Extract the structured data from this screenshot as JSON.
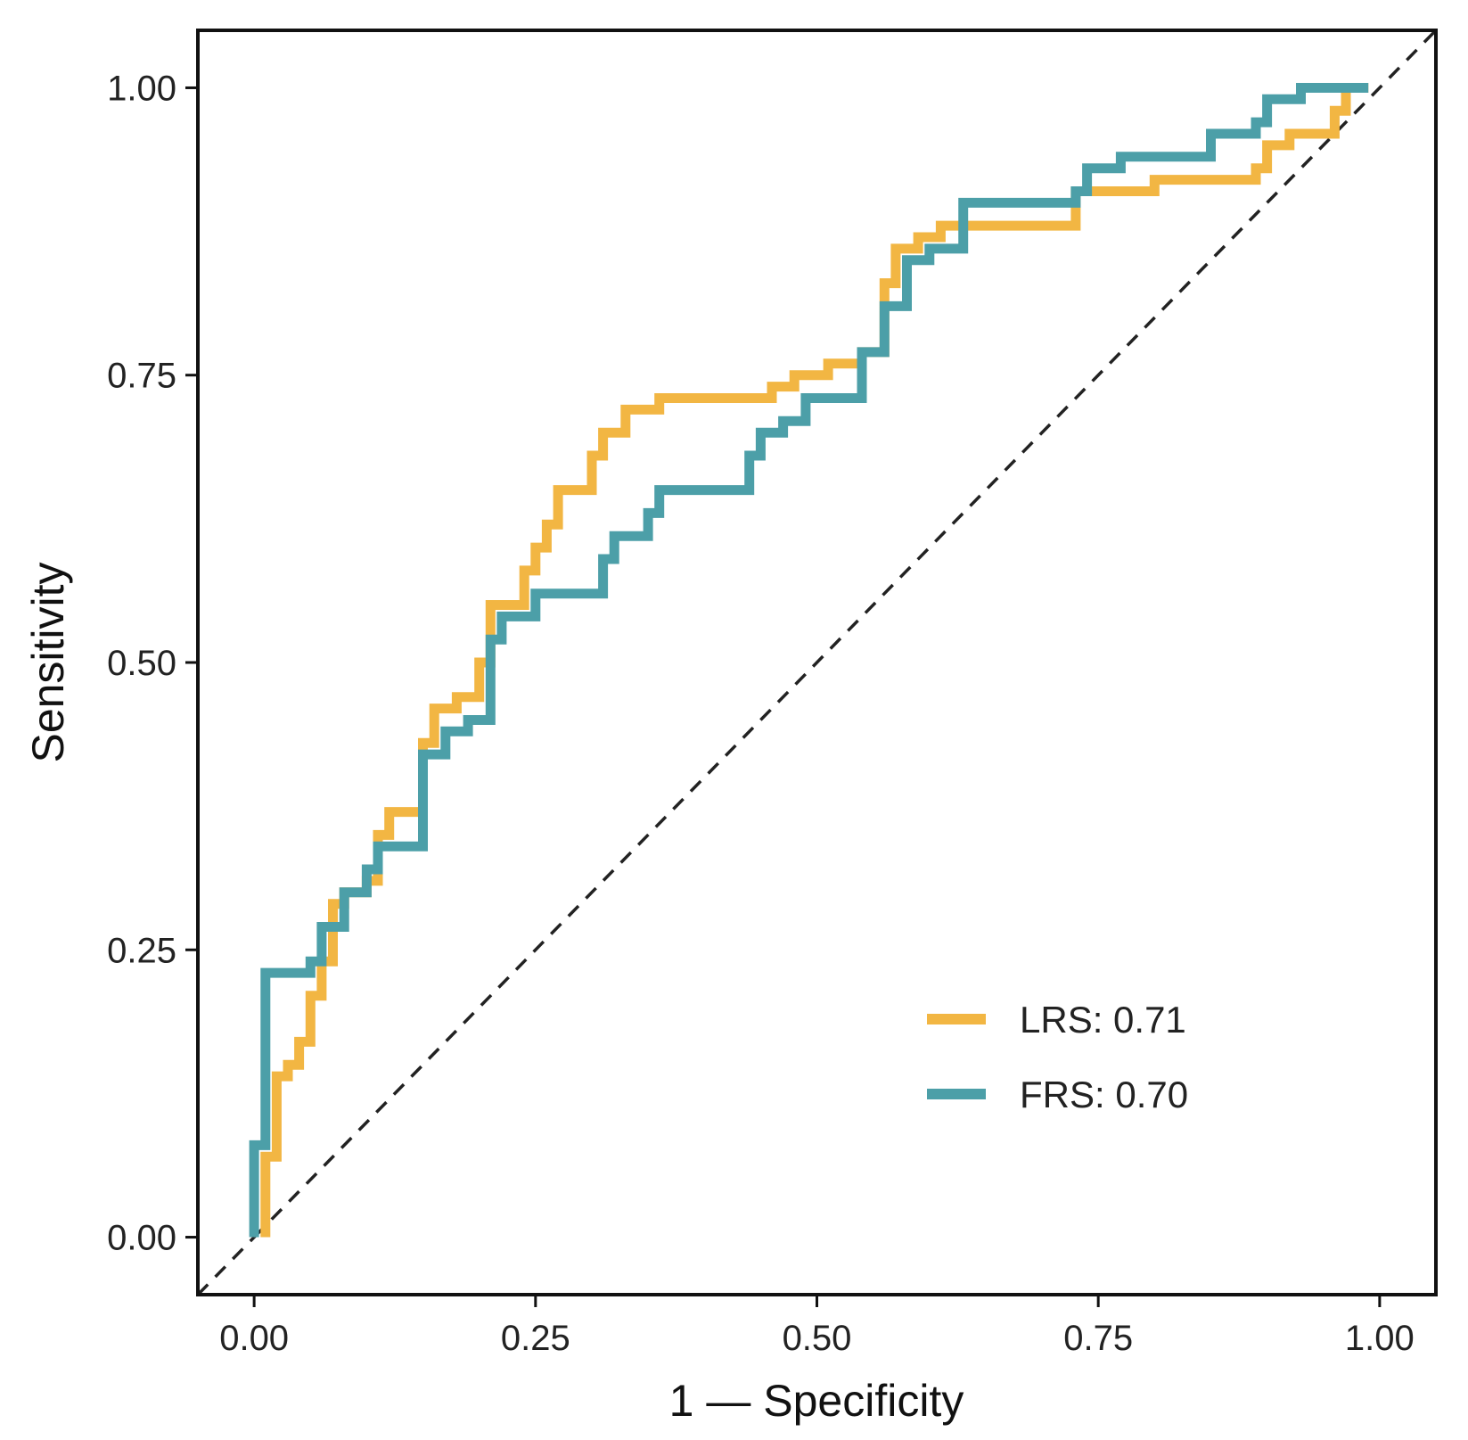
{
  "chart_data": {
    "type": "line",
    "title": "",
    "xlabel": "1 — Specificity",
    "ylabel": "Sensitivity",
    "xlim": [
      -0.05,
      1.05
    ],
    "ylim": [
      -0.05,
      1.05
    ],
    "x_ticks": [
      0.0,
      0.25,
      0.5,
      0.75,
      1.0
    ],
    "x_tick_labels": [
      "0.00",
      "0.25",
      "0.50",
      "0.75",
      "1.00"
    ],
    "y_ticks": [
      0.0,
      0.25,
      0.5,
      0.75,
      1.0
    ],
    "y_tick_labels": [
      "0.00",
      "0.25",
      "0.50",
      "0.75",
      "1.00"
    ],
    "grid": false,
    "legend_position": "bottom-right",
    "reference_line": {
      "x": [
        0,
        1.05
      ],
      "y": [
        0,
        1.05
      ],
      "style": "dashed",
      "color": "#222222"
    },
    "series": [
      {
        "name": "LRS",
        "legend_label": "LRS: 0.71",
        "auc": 0.71,
        "color": "#F2B643",
        "x": [
          0.01,
          0.01,
          0.02,
          0.02,
          0.03,
          0.03,
          0.04,
          0.04,
          0.05,
          0.05,
          0.06,
          0.06,
          0.07,
          0.07,
          0.08,
          0.08,
          0.1,
          0.1,
          0.11,
          0.11,
          0.12,
          0.12,
          0.15,
          0.15,
          0.16,
          0.16,
          0.18,
          0.18,
          0.2,
          0.2,
          0.21,
          0.21,
          0.24,
          0.24,
          0.25,
          0.25,
          0.26,
          0.26,
          0.27,
          0.27,
          0.3,
          0.3,
          0.31,
          0.31,
          0.33,
          0.33,
          0.36,
          0.36,
          0.46,
          0.46,
          0.48,
          0.48,
          0.51,
          0.51,
          0.54,
          0.54,
          0.56,
          0.56,
          0.57,
          0.57,
          0.59,
          0.59,
          0.61,
          0.61,
          0.73,
          0.73,
          0.8,
          0.8,
          0.89,
          0.89,
          0.9,
          0.9,
          0.92,
          0.92,
          0.96,
          0.96,
          0.97,
          0.97,
          0.99
        ],
        "y": [
          0.0,
          0.07,
          0.07,
          0.14,
          0.14,
          0.15,
          0.15,
          0.17,
          0.17,
          0.21,
          0.21,
          0.24,
          0.24,
          0.29,
          0.29,
          0.3,
          0.3,
          0.31,
          0.31,
          0.35,
          0.35,
          0.37,
          0.37,
          0.43,
          0.43,
          0.46,
          0.46,
          0.47,
          0.47,
          0.5,
          0.5,
          0.55,
          0.55,
          0.58,
          0.58,
          0.6,
          0.6,
          0.62,
          0.62,
          0.65,
          0.65,
          0.68,
          0.68,
          0.7,
          0.7,
          0.72,
          0.72,
          0.73,
          0.73,
          0.74,
          0.74,
          0.75,
          0.75,
          0.76,
          0.76,
          0.77,
          0.77,
          0.83,
          0.83,
          0.86,
          0.86,
          0.87,
          0.87,
          0.88,
          0.88,
          0.91,
          0.91,
          0.92,
          0.92,
          0.93,
          0.93,
          0.95,
          0.95,
          0.96,
          0.96,
          0.98,
          0.98,
          1.0,
          1.0
        ]
      },
      {
        "name": "FRS",
        "legend_label": "FRS: 0.70",
        "auc": 0.7,
        "color": "#4C9FA8",
        "x": [
          0.0,
          0.0,
          0.01,
          0.01,
          0.05,
          0.05,
          0.06,
          0.06,
          0.08,
          0.08,
          0.1,
          0.1,
          0.11,
          0.11,
          0.15,
          0.15,
          0.17,
          0.17,
          0.19,
          0.19,
          0.21,
          0.21,
          0.22,
          0.22,
          0.25,
          0.25,
          0.31,
          0.31,
          0.32,
          0.32,
          0.35,
          0.35,
          0.36,
          0.36,
          0.44,
          0.44,
          0.45,
          0.45,
          0.47,
          0.47,
          0.49,
          0.49,
          0.54,
          0.54,
          0.56,
          0.56,
          0.58,
          0.58,
          0.6,
          0.6,
          0.63,
          0.63,
          0.73,
          0.73,
          0.74,
          0.74,
          0.77,
          0.77,
          0.85,
          0.85,
          0.89,
          0.89,
          0.9,
          0.9,
          0.93,
          0.93,
          0.99
        ],
        "y": [
          0.0,
          0.08,
          0.08,
          0.23,
          0.23,
          0.24,
          0.24,
          0.27,
          0.27,
          0.3,
          0.3,
          0.32,
          0.32,
          0.34,
          0.34,
          0.42,
          0.42,
          0.44,
          0.44,
          0.45,
          0.45,
          0.52,
          0.52,
          0.54,
          0.54,
          0.56,
          0.56,
          0.59,
          0.59,
          0.61,
          0.61,
          0.63,
          0.63,
          0.65,
          0.65,
          0.68,
          0.68,
          0.7,
          0.7,
          0.71,
          0.71,
          0.73,
          0.73,
          0.77,
          0.77,
          0.81,
          0.81,
          0.85,
          0.85,
          0.86,
          0.86,
          0.9,
          0.9,
          0.91,
          0.91,
          0.93,
          0.93,
          0.94,
          0.94,
          0.96,
          0.96,
          0.97,
          0.97,
          0.99,
          0.99,
          1.0,
          1.0
        ]
      }
    ]
  }
}
